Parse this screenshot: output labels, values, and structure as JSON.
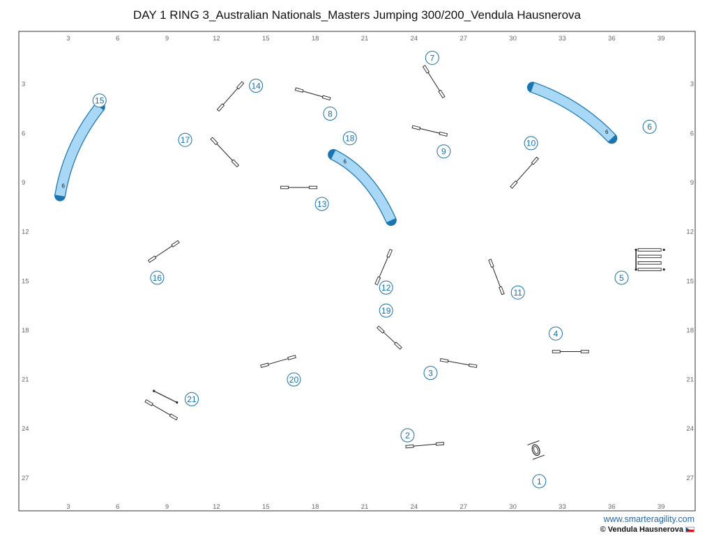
{
  "title": "DAY 1 RING 3_Australian Nationals_Masters Jumping 300/200_Vendula Hausnerova",
  "footer": {
    "url": "www.smarteragility.com",
    "copyright": "© Vendula Hausnerova"
  },
  "grid": {
    "x_labels": [
      "3",
      "6",
      "9",
      "12",
      "15",
      "18",
      "21",
      "24",
      "27",
      "30",
      "33",
      "36",
      "39"
    ],
    "y_labels": [
      "3",
      "6",
      "9",
      "12",
      "15",
      "18",
      "21",
      "24",
      "27"
    ]
  },
  "colors": {
    "tunnel_fill": "#a8d8f5",
    "tunnel_stroke": "#1a74b0",
    "number": "#1a6fa8",
    "border": "#333333"
  },
  "obstacles": {
    "tunnels": [
      {
        "id": "tunnel-15",
        "label": "6",
        "from": [
          4.9,
          4.4
        ],
        "ctrl": [
          3.0,
          6.8
        ],
        "to": [
          2.5,
          9.8
        ],
        "label_at": [
          2.7,
          9.2
        ]
      },
      {
        "id": "tunnel-6",
        "label": "6",
        "from": [
          31.2,
          3.2
        ],
        "ctrl": [
          34.0,
          4.2
        ],
        "to": [
          36.0,
          6.3
        ],
        "label_at": [
          35.7,
          5.9
        ]
      },
      {
        "id": "tunnel-18",
        "label": "6",
        "from": [
          19.1,
          7.3
        ],
        "ctrl": [
          21.3,
          8.4
        ],
        "to": [
          22.6,
          11.3
        ],
        "label_at": [
          19.8,
          7.7
        ]
      }
    ],
    "jumps": [
      {
        "from": [
          24.6,
          1.9
        ],
        "to": [
          25.8,
          3.8
        ]
      },
      {
        "from": [
          16.8,
          3.3
        ],
        "to": [
          18.9,
          3.9
        ]
      },
      {
        "from": [
          13.6,
          2.9
        ],
        "to": [
          12.1,
          4.6
        ]
      },
      {
        "from": [
          11.7,
          6.3
        ],
        "to": [
          13.3,
          8.0
        ]
      },
      {
        "from": [
          23.9,
          5.6
        ],
        "to": [
          26.0,
          6.1
        ]
      },
      {
        "from": [
          15.9,
          9.3
        ],
        "to": [
          18.1,
          9.3
        ]
      },
      {
        "from": [
          31.5,
          7.5
        ],
        "to": [
          29.9,
          9.3
        ]
      },
      {
        "from": [
          22.6,
          13.1
        ],
        "to": [
          21.7,
          15.2
        ]
      },
      {
        "from": [
          28.6,
          13.7
        ],
        "to": [
          29.4,
          15.8
        ]
      },
      {
        "from": [
          9.7,
          12.6
        ],
        "to": [
          7.9,
          13.8
        ]
      },
      {
        "from": [
          21.8,
          17.8
        ],
        "to": [
          23.2,
          19.1
        ]
      },
      {
        "from": [
          25.6,
          19.8
        ],
        "to": [
          27.8,
          20.2
        ]
      },
      {
        "from": [
          32.4,
          19.3
        ],
        "to": [
          34.6,
          19.3
        ]
      },
      {
        "from": [
          16.8,
          19.6
        ],
        "to": [
          14.7,
          20.2
        ]
      },
      {
        "from": [
          7.7,
          22.3
        ],
        "to": [
          9.6,
          23.4
        ]
      },
      {
        "from": [
          23.5,
          25.1
        ],
        "to": [
          25.8,
          24.9
        ]
      }
    ],
    "tire": {
      "at": [
        31.4,
        25.3
      ]
    },
    "jump_21_extra": {
      "from": [
        8.2,
        21.7
      ],
      "to": [
        9.6,
        22.4
      ]
    },
    "weaves": {
      "x1": 37.6,
      "x2": 39.0,
      "ys": [
        13.1,
        13.5,
        13.9,
        14.3
      ]
    }
  },
  "numbers": [
    {
      "n": "1",
      "at": [
        31.6,
        27.2
      ]
    },
    {
      "n": "2",
      "at": [
        23.6,
        24.4
      ]
    },
    {
      "n": "3",
      "at": [
        25.0,
        20.6
      ]
    },
    {
      "n": "4",
      "at": [
        32.6,
        18.2
      ]
    },
    {
      "n": "5",
      "at": [
        36.6,
        14.8
      ]
    },
    {
      "n": "6",
      "at": [
        38.3,
        5.6
      ]
    },
    {
      "n": "7",
      "at": [
        25.1,
        1.4
      ]
    },
    {
      "n": "8",
      "at": [
        18.9,
        4.8
      ]
    },
    {
      "n": "9",
      "at": [
        25.8,
        7.1
      ]
    },
    {
      "n": "10",
      "at": [
        31.1,
        6.6
      ]
    },
    {
      "n": "11",
      "at": [
        30.3,
        15.7
      ]
    },
    {
      "n": "12",
      "at": [
        22.3,
        15.4
      ]
    },
    {
      "n": "13",
      "at": [
        18.4,
        10.3
      ]
    },
    {
      "n": "14",
      "at": [
        14.4,
        3.1
      ]
    },
    {
      "n": "15",
      "at": [
        4.9,
        4.0
      ]
    },
    {
      "n": "16",
      "at": [
        8.4,
        14.8
      ]
    },
    {
      "n": "17",
      "at": [
        10.1,
        6.4
      ]
    },
    {
      "n": "18",
      "at": [
        20.1,
        6.3
      ]
    },
    {
      "n": "19",
      "at": [
        22.3,
        16.8
      ]
    },
    {
      "n": "20",
      "at": [
        16.7,
        21.0
      ]
    },
    {
      "n": "21",
      "at": [
        10.5,
        22.2
      ]
    }
  ]
}
